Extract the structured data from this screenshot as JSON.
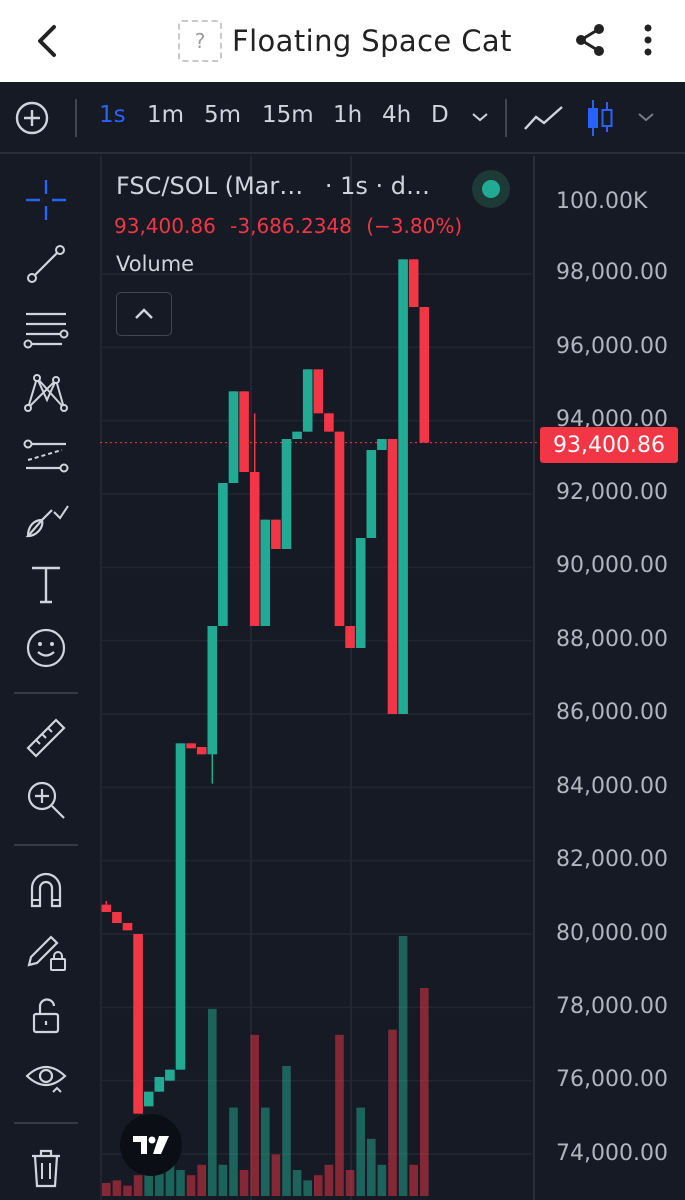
{
  "header": {
    "title": "Floating Space Cat",
    "token_icon_glyph": "?"
  },
  "toolbar": {
    "intervals": [
      "1s",
      "1m",
      "5m",
      "15m",
      "1h",
      "4h",
      "D"
    ],
    "active_interval": "1s"
  },
  "chart": {
    "legend_symbol": "FSC/SOL (Mar…",
    "legend_meta": "· 1s · d…",
    "last_price": "93,400.86",
    "change": "-3,686.2348",
    "change_pct": "(−3.80%)",
    "volume_label": "Volume",
    "price_tag": "93,400.86",
    "axis_labels": [
      "100.00K",
      "98,000.00",
      "96,000.00",
      "94,000.00",
      "92,000.00",
      "90,000.00",
      "88,000.00",
      "86,000.00",
      "84,000.00",
      "82,000.00",
      "80,000.00",
      "78,000.00",
      "76,000.00",
      "74,000.00"
    ]
  },
  "colors": {
    "up": "#22ab94",
    "down": "#f23645",
    "accent": "#2962ff"
  },
  "chart_data": {
    "type": "candlestick",
    "ylim": [
      73000,
      100500
    ],
    "candles": [
      {
        "o": 80800,
        "h": 80900,
        "l": 80600,
        "c": 80600
      },
      {
        "o": 80600,
        "h": 80600,
        "l": 80300,
        "c": 80300
      },
      {
        "o": 80300,
        "h": 80300,
        "l": 80100,
        "c": 80100
      },
      {
        "o": 80000,
        "h": 80000,
        "l": 75100,
        "c": 75100
      },
      {
        "o": 75300,
        "h": 75700,
        "l": 75300,
        "c": 75700
      },
      {
        "o": 75700,
        "h": 76100,
        "l": 75700,
        "c": 76100
      },
      {
        "o": 76000,
        "h": 76300,
        "l": 76000,
        "c": 76300
      },
      {
        "o": 76300,
        "h": 85200,
        "l": 76300,
        "c": 85200
      },
      {
        "o": 85200,
        "h": 85200,
        "l": 85100,
        "c": 85100
      },
      {
        "o": 85100,
        "h": 85100,
        "l": 84900,
        "c": 84900
      },
      {
        "o": 84900,
        "h": 88400,
        "l": 84100,
        "c": 88400
      },
      {
        "o": 88400,
        "h": 92300,
        "l": 88400,
        "c": 92300
      },
      {
        "o": 92300,
        "h": 94800,
        "l": 92300,
        "c": 94800
      },
      {
        "o": 94800,
        "h": 94800,
        "l": 92600,
        "c": 92600
      },
      {
        "o": 92600,
        "h": 94200,
        "l": 88400,
        "c": 88400
      },
      {
        "o": 88400,
        "h": 91300,
        "l": 88400,
        "c": 91300
      },
      {
        "o": 91300,
        "h": 91300,
        "l": 90500,
        "c": 90500
      },
      {
        "o": 90500,
        "h": 93500,
        "l": 90500,
        "c": 93500
      },
      {
        "o": 93500,
        "h": 93700,
        "l": 93500,
        "c": 93700
      },
      {
        "o": 93700,
        "h": 95400,
        "l": 93700,
        "c": 95400
      },
      {
        "o": 95400,
        "h": 95400,
        "l": 94200,
        "c": 94200
      },
      {
        "o": 94200,
        "h": 94200,
        "l": 93700,
        "c": 93700
      },
      {
        "o": 93700,
        "h": 93700,
        "l": 88400,
        "c": 88400
      },
      {
        "o": 88400,
        "h": 88400,
        "l": 87800,
        "c": 87800
      },
      {
        "o": 87800,
        "h": 90800,
        "l": 87800,
        "c": 90800
      },
      {
        "o": 90800,
        "h": 93200,
        "l": 90800,
        "c": 93200
      },
      {
        "o": 93200,
        "h": 93500,
        "l": 93200,
        "c": 93500
      },
      {
        "o": 93500,
        "h": 93500,
        "l": 86000,
        "c": 86000
      },
      {
        "o": 86000,
        "h": 98400,
        "l": 86000,
        "c": 98400
      },
      {
        "o": 98400,
        "h": 98400,
        "l": 97100,
        "c": 97100
      },
      {
        "o": 97100,
        "h": 97100,
        "l": 93400,
        "c": 93400
      }
    ],
    "volume": [
      0.05,
      0.06,
      0.04,
      0.08,
      0.12,
      0.12,
      0.18,
      0.1,
      0.08,
      0.12,
      0.72,
      0.12,
      0.34,
      0.1,
      0.62,
      0.34,
      0.16,
      0.5,
      0.1,
      0.06,
      0.08,
      0.12,
      0.62,
      0.1,
      0.34,
      0.22,
      0.12,
      0.64,
      1.0,
      0.12,
      0.8
    ]
  }
}
